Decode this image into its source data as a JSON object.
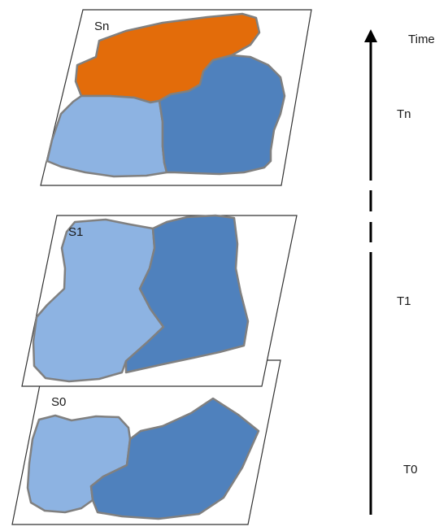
{
  "colors": {
    "orange": "#e36c0a",
    "light_blue": "#8db3e2",
    "dark_blue": "#4f81bd",
    "outline": "#808080",
    "plane_border": "#333333",
    "axis": "#000000"
  },
  "axis": {
    "title": "Time",
    "ticks": [
      "Tn",
      "T1",
      "T0"
    ],
    "line_style": "solid-dashed-solid with arrow pointing up"
  },
  "snapshots": [
    {
      "label": "Sn",
      "regions": [
        "orange",
        "light_blue",
        "dark_blue"
      ]
    },
    {
      "label": "S1",
      "regions": [
        "light_blue",
        "dark_blue"
      ]
    },
    {
      "label": "S0",
      "regions": [
        "light_blue",
        "dark_blue"
      ]
    }
  ]
}
